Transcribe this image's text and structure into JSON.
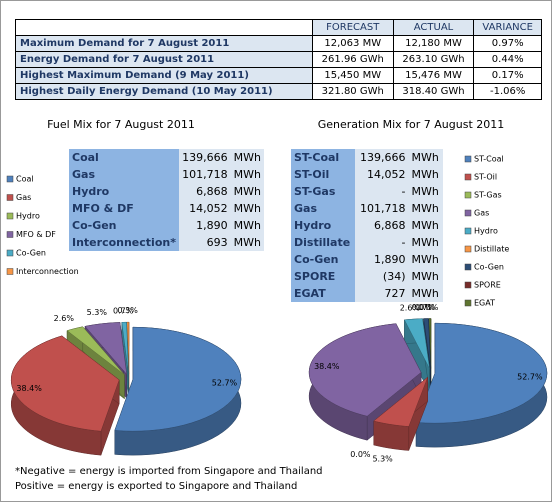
{
  "summary_table": {
    "headers": [
      "FORECAST",
      "ACTUAL",
      "VARIANCE"
    ],
    "rows": [
      [
        "Maximum Demand for 7 August 2011",
        "12,063 MW",
        "12,180 MW",
        "0.97%"
      ],
      [
        "Energy Demand for 7 August 2011",
        "261.96 GWh",
        "263.10 GWh",
        "0.44%"
      ],
      [
        "Highest Maximum Demand (9 May 2011)",
        "15,450 MW",
        "15,476 MW",
        "0.17%"
      ],
      [
        "Highest Daily Energy Demand (10 May 2011)",
        "321.80 GWh",
        "318.40 GWh",
        "-1.06%"
      ]
    ]
  },
  "fuel_table": {
    "rows": [
      [
        "Coal",
        "139,666",
        "MWh"
      ],
      [
        "Gas",
        "101,718",
        "MWh"
      ],
      [
        "Hydro",
        "6,868",
        "MWh"
      ],
      [
        "MFO & DF",
        "14,052",
        "MWh"
      ],
      [
        "Co-Gen",
        "1,890",
        "MWh"
      ],
      [
        "Interconnection*",
        "693",
        "MWh"
      ]
    ]
  },
  "generation_table": {
    "rows": [
      [
        "ST-Coal",
        "139,666",
        "MWh"
      ],
      [
        "ST-Oil",
        "14,052",
        "MWh"
      ],
      [
        "ST-Gas",
        "-",
        "MWh"
      ],
      [
        "Gas",
        "101,718",
        "MWh"
      ],
      [
        "Hydro",
        "6,868",
        "MWh"
      ],
      [
        "Distillate",
        "-",
        "MWh"
      ],
      [
        "Co-Gen",
        "1,890",
        "MWh"
      ],
      [
        "SPORE",
        "(34)",
        "MWh"
      ],
      [
        "EGAT",
        "727",
        "MWh"
      ]
    ]
  },
  "chart_data": [
    {
      "type": "pie",
      "title": "Fuel Mix for 7 August 2011",
      "categories": [
        "Coal",
        "Gas",
        "Hydro",
        "MFO & DF",
        "Co-Gen",
        "Interconnection"
      ],
      "values": [
        52.7,
        38.4,
        2.6,
        5.3,
        0.7,
        0.3
      ],
      "value_labels": [
        "52.7%",
        "38.4%",
        "2.6%",
        "5.3%",
        "0.7%",
        "0.3%"
      ],
      "colors": [
        "#4f81bd",
        "#c0504d",
        "#9bbb59",
        "#8064a2",
        "#4bacc6",
        "#f79646"
      ]
    },
    {
      "type": "pie",
      "title": "Generation Mix for 7 August 2011",
      "categories": [
        "ST-Coal",
        "ST-Oil",
        "ST-Gas",
        "Gas",
        "Hydro",
        "Distillate",
        "Co-Gen",
        "SPORE",
        "EGAT"
      ],
      "values": [
        52.7,
        5.3,
        0,
        38.4,
        2.6,
        0,
        0.7,
        0,
        0.3
      ],
      "value_labels": [
        "52.7%",
        "5.3%",
        "0.0%",
        "38.4%",
        "2.6%",
        "0.0%",
        "0.7%",
        "0.0%",
        null
      ],
      "colors": [
        "#4f81bd",
        "#c0504d",
        "#9bbb59",
        "#8064a2",
        "#4bacc6",
        "#f79646",
        "#2c4d75",
        "#772c2a",
        "#5f7530"
      ]
    }
  ],
  "footnote": [
    "*Negative = energy is imported from Singapore and Thailand",
    "Positive = energy is exported to Singapore and Thailand"
  ]
}
